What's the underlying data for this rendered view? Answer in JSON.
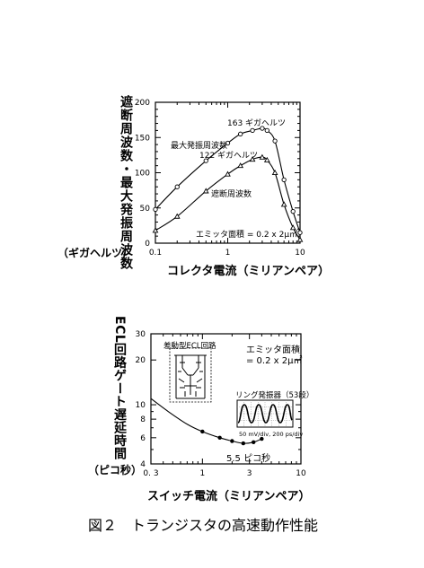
{
  "caption": "図２　トランジスタの高速動作性能",
  "chart_data": [
    {
      "type": "line",
      "xscale": "log",
      "xlim": [
        0.1,
        10
      ],
      "ylim": [
        0,
        200
      ],
      "xticks": [
        "0.1",
        "1",
        "10"
      ],
      "yticks": [
        "0",
        "50",
        "100",
        "150",
        "200"
      ],
      "ylabel": "遮断周波数・最大発振周波数",
      "yunit": "（ギガヘルツ）",
      "xlabel": "コレクタ電流（ミリアンペア）",
      "annotations": {
        "peak_max_osc": "163 ギガヘルツ",
        "peak_cutoff": "122 ギガヘルツ",
        "emitter_area": "エミッタ面積 = 0.2 x 2μ㎡"
      },
      "series": [
        {
          "name": "最大発振周波数",
          "marker": "circle",
          "x": [
            0.1,
            0.2,
            0.5,
            1.0,
            1.5,
            2.2,
            3.0,
            3.5,
            4.5,
            6.0,
            8.0,
            10.0
          ],
          "y": [
            48,
            80,
            117,
            142,
            155,
            160,
            163,
            160,
            145,
            90,
            45,
            15
          ]
        },
        {
          "name": "遮断周波数",
          "marker": "triangle",
          "x": [
            0.1,
            0.2,
            0.5,
            1.0,
            1.5,
            2.2,
            3.0,
            3.5,
            4.5,
            6.0,
            8.0,
            10.0
          ],
          "y": [
            18,
            38,
            74,
            98,
            110,
            119,
            122,
            118,
            100,
            55,
            22,
            5
          ]
        }
      ]
    },
    {
      "type": "line",
      "xscale": "log",
      "yscale": "log",
      "xlim": [
        0.3,
        10
      ],
      "ylim": [
        4,
        30
      ],
      "xticks": [
        "0. 3",
        "1",
        "3",
        "10"
      ],
      "yticks": [
        "4",
        "6",
        "8",
        "10",
        "20",
        "30"
      ],
      "ylabel": "ECL回路ゲート遅延時間",
      "yunit": "（ピコ秒）",
      "xlabel": "スイッチ電流（ミリアンペア）",
      "annotations": {
        "min_delay": "5.5 ピコ秒",
        "emitter_area_1": "エミッタ面積",
        "emitter_area_2": "= 0.2 x 2μ㎡",
        "inset_circuit": "差動型ECL回路",
        "inset_ring": "リング発振器（53段）",
        "inset_scale": "50 mV/div,  200 ps/div"
      },
      "series": [
        {
          "marker": "filled-circle",
          "x": [
            0.3,
            0.45,
            0.7,
            1.0,
            1.5,
            2.0,
            2.6,
            3.3,
            4.0
          ],
          "y": [
            11,
            9.0,
            7.4,
            6.6,
            6.0,
            5.7,
            5.5,
            5.6,
            5.9
          ]
        }
      ]
    }
  ]
}
